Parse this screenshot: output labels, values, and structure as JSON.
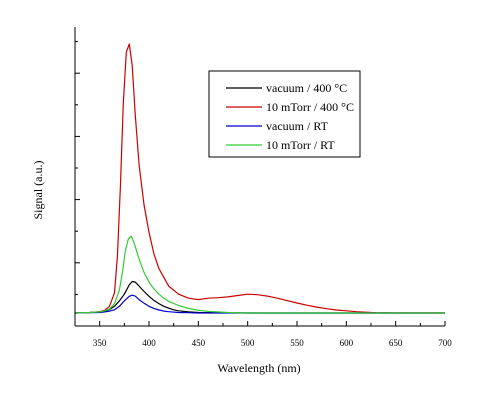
{
  "chart_data": {
    "type": "line",
    "title": "",
    "xlabel": "Wavelength (nm)",
    "ylabel": "Signal (a.u.)",
    "xlim": [
      325,
      700
    ],
    "ylim": [
      0,
      1.05
    ],
    "xticks": [
      350,
      400,
      450,
      500,
      550,
      600,
      650,
      700
    ],
    "xtick_labels": [
      "350",
      "400",
      "450",
      "500",
      "550",
      "600",
      "650",
      "700"
    ],
    "y_tick_labels_shown": false,
    "grid": false,
    "legend_position": "top-right",
    "series": [
      {
        "name": "vacuum / 400 °C",
        "color": "#000000",
        "x": [
          325,
          340,
          350,
          355,
          360,
          365,
          370,
          375,
          380,
          383,
          386,
          390,
          395,
          400,
          405,
          410,
          415,
          420,
          425,
          430,
          440,
          450,
          470,
          500,
          550,
          600,
          650,
          700
        ],
        "y": [
          0,
          0.002,
          0.004,
          0.008,
          0.013,
          0.025,
          0.045,
          0.07,
          0.105,
          0.117,
          0.115,
          0.1,
          0.08,
          0.062,
          0.047,
          0.035,
          0.025,
          0.018,
          0.012,
          0.008,
          0.004,
          0.002,
          0.001,
          0,
          0,
          0,
          0,
          0
        ]
      },
      {
        "name": "10 mTorr / 400 °C",
        "color": "#cc0000",
        "x": [
          325,
          340,
          350,
          355,
          360,
          365,
          368,
          371,
          374,
          377,
          380,
          383,
          386,
          390,
          395,
          400,
          405,
          410,
          420,
          430,
          440,
          450,
          460,
          470,
          480,
          490,
          500,
          510,
          520,
          530,
          540,
          550,
          560,
          570,
          580,
          590,
          600,
          610,
          620,
          630,
          650,
          700
        ],
        "y": [
          0,
          0.002,
          0.005,
          0.01,
          0.025,
          0.075,
          0.21,
          0.47,
          0.78,
          0.97,
          1.0,
          0.92,
          0.74,
          0.55,
          0.4,
          0.3,
          0.22,
          0.165,
          0.1,
          0.07,
          0.055,
          0.05,
          0.055,
          0.057,
          0.06,
          0.065,
          0.07,
          0.068,
          0.063,
          0.055,
          0.046,
          0.037,
          0.029,
          0.022,
          0.016,
          0.011,
          0.008,
          0.005,
          0.003,
          0.001,
          0,
          0
        ]
      },
      {
        "name": "vacuum / RT",
        "color": "#0000cc",
        "x": [
          325,
          340,
          350,
          355,
          360,
          365,
          370,
          375,
          380,
          383,
          386,
          390,
          395,
          400,
          405,
          410,
          415,
          420,
          430,
          440,
          450,
          470,
          500,
          550,
          600,
          650,
          700
        ],
        "y": [
          0,
          0.001,
          0.002,
          0.004,
          0.007,
          0.012,
          0.025,
          0.045,
          0.062,
          0.066,
          0.063,
          0.05,
          0.036,
          0.025,
          0.017,
          0.011,
          0.007,
          0.005,
          0.002,
          0.001,
          0,
          0,
          0,
          0,
          0,
          0,
          0
        ]
      },
      {
        "name": "10 mTorr / RT",
        "color": "#33cc33",
        "x": [
          325,
          340,
          350,
          355,
          360,
          365,
          370,
          373,
          376,
          379,
          382,
          385,
          390,
          395,
          400,
          405,
          410,
          415,
          420,
          430,
          440,
          450,
          460,
          480,
          500,
          550,
          600,
          650,
          700
        ],
        "y": [
          0,
          0.002,
          0.004,
          0.008,
          0.015,
          0.035,
          0.085,
          0.15,
          0.23,
          0.275,
          0.285,
          0.26,
          0.2,
          0.15,
          0.115,
          0.09,
          0.07,
          0.055,
          0.043,
          0.028,
          0.017,
          0.01,
          0.006,
          0.002,
          0,
          0,
          0,
          0,
          0
        ]
      }
    ]
  }
}
